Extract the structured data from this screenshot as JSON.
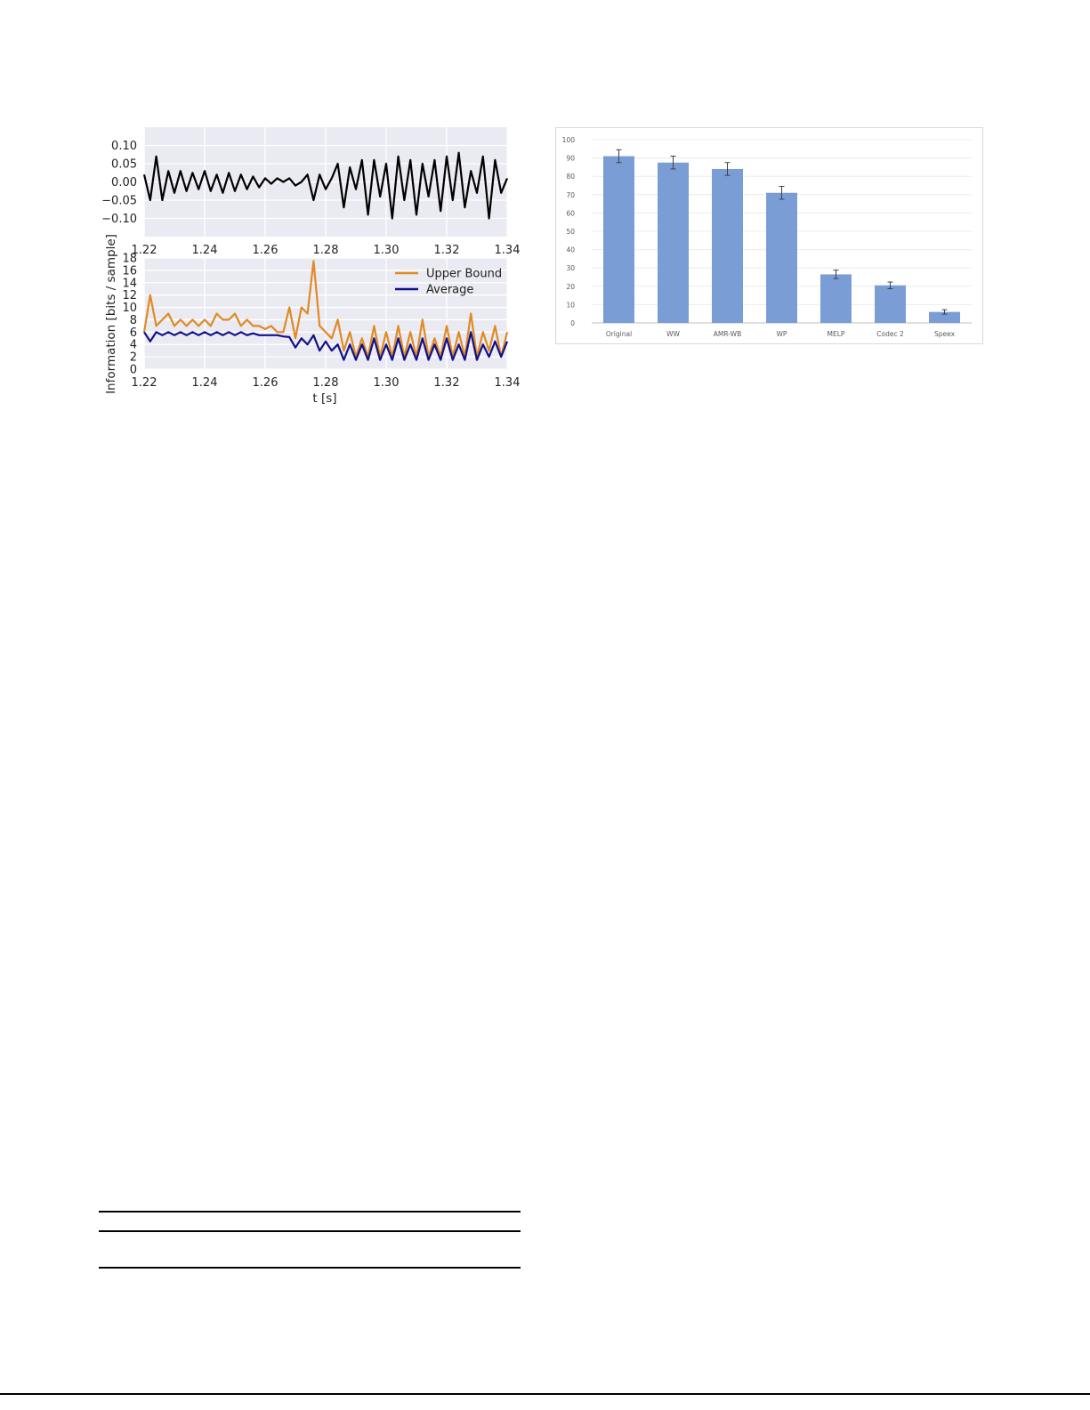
{
  "figure_left": {
    "top_panel": {
      "type": "line",
      "xlim": [
        1.22,
        1.34
      ],
      "ylim": [
        -0.15,
        0.15
      ],
      "x_ticks": [
        "1.22",
        "1.24",
        "1.26",
        "1.28",
        "1.30",
        "1.32",
        "1.34"
      ],
      "y_ticks": [
        "0.10",
        "0.05",
        "0.00",
        "−0.05",
        "−0.10"
      ],
      "y_tick_values": [
        0.1,
        0.05,
        0.0,
        -0.05,
        -0.1
      ],
      "grid": true,
      "background": "#eaeaf2",
      "series_color": "#000000"
    },
    "bottom_panel": {
      "type": "line",
      "xlim": [
        1.22,
        1.34
      ],
      "ylim": [
        0,
        18
      ],
      "x_ticks": [
        "1.22",
        "1.24",
        "1.26",
        "1.28",
        "1.30",
        "1.32",
        "1.34"
      ],
      "y_ticks": [
        "18",
        "16",
        "14",
        "12",
        "10",
        "8",
        "6",
        "4",
        "2",
        "0"
      ],
      "ylabel": "Information [bits / sample]",
      "xlabel": "t [s]",
      "grid": true,
      "background": "#eaeaf2",
      "legend_position": "top-right",
      "legend": [
        {
          "name": "Upper Bound",
          "color": "#e08a22"
        },
        {
          "name": "Average",
          "color": "#11118a"
        }
      ]
    }
  },
  "chart_data": [
    {
      "type": "line",
      "xlim": [
        1.22,
        1.34
      ],
      "ylim": [
        -0.15,
        0.15
      ],
      "x": [
        1.22,
        1.222,
        1.224,
        1.226,
        1.228,
        1.23,
        1.232,
        1.234,
        1.236,
        1.238,
        1.24,
        1.242,
        1.244,
        1.246,
        1.248,
        1.25,
        1.252,
        1.254,
        1.256,
        1.258,
        1.26,
        1.262,
        1.264,
        1.266,
        1.268,
        1.27,
        1.272,
        1.274,
        1.276,
        1.278,
        1.28,
        1.282,
        1.284,
        1.286,
        1.288,
        1.29,
        1.292,
        1.294,
        1.296,
        1.298,
        1.3,
        1.302,
        1.304,
        1.306,
        1.308,
        1.31,
        1.312,
        1.314,
        1.316,
        1.318,
        1.32,
        1.322,
        1.324,
        1.326,
        1.328,
        1.33,
        1.332,
        1.334,
        1.336,
        1.338,
        1.34
      ],
      "series": [
        {
          "values": [
            0.02,
            -0.05,
            0.07,
            -0.05,
            0.03,
            -0.03,
            0.03,
            -0.025,
            0.025,
            -0.02,
            0.03,
            -0.025,
            0.02,
            -0.03,
            0.025,
            -0.025,
            0.02,
            -0.02,
            0.015,
            -0.015,
            0.01,
            -0.005,
            0.01,
            0.0,
            0.01,
            -0.01,
            0.0,
            0.02,
            -0.05,
            0.02,
            -0.02,
            0.01,
            0.05,
            -0.07,
            0.04,
            -0.02,
            0.06,
            -0.09,
            0.06,
            -0.04,
            0.05,
            -0.1,
            0.07,
            -0.05,
            0.06,
            -0.09,
            0.05,
            -0.04,
            0.06,
            -0.08,
            0.07,
            -0.05,
            0.08,
            -0.07,
            0.03,
            -0.03,
            0.07,
            -0.1,
            0.06,
            -0.03,
            0.01
          ]
        }
      ]
    },
    {
      "type": "line",
      "xlim": [
        1.22,
        1.34
      ],
      "ylim": [
        0,
        18
      ],
      "xlabel": "t [s]",
      "ylabel": "Information [bits / sample]",
      "x": [
        1.22,
        1.222,
        1.224,
        1.226,
        1.228,
        1.23,
        1.232,
        1.234,
        1.236,
        1.238,
        1.24,
        1.242,
        1.244,
        1.246,
        1.248,
        1.25,
        1.252,
        1.254,
        1.256,
        1.258,
        1.26,
        1.262,
        1.264,
        1.266,
        1.268,
        1.27,
        1.272,
        1.274,
        1.276,
        1.278,
        1.28,
        1.282,
        1.284,
        1.286,
        1.288,
        1.29,
        1.292,
        1.294,
        1.296,
        1.298,
        1.3,
        1.302,
        1.304,
        1.306,
        1.308,
        1.31,
        1.312,
        1.314,
        1.316,
        1.318,
        1.32,
        1.322,
        1.324,
        1.326,
        1.328,
        1.33,
        1.332,
        1.334,
        1.336,
        1.338,
        1.34
      ],
      "series": [
        {
          "name": "Upper Bound",
          "color": "#e08a22",
          "values": [
            6,
            12,
            7,
            8,
            9,
            7,
            8,
            7,
            8,
            7,
            8,
            7,
            9,
            8,
            8,
            9,
            7,
            8,
            7,
            7,
            6.5,
            7,
            6,
            6,
            10,
            5,
            10,
            9,
            17.5,
            7,
            6,
            5,
            8,
            3,
            6,
            2,
            5,
            2,
            7,
            2,
            6,
            2,
            7,
            2,
            6,
            2,
            8,
            2,
            5,
            2,
            7,
            2,
            6,
            2,
            9,
            2,
            6,
            3,
            7,
            2,
            6
          ]
        },
        {
          "name": "Average",
          "color": "#11118a",
          "values": [
            6,
            4.5,
            6,
            5.5,
            6,
            5.5,
            6,
            5.5,
            6,
            5.5,
            6,
            5.5,
            6,
            5.5,
            6,
            5.5,
            6,
            5.5,
            5.8,
            5.5,
            5.5,
            5.5,
            5.5,
            5.3,
            5.2,
            3.5,
            5,
            4,
            5.5,
            3,
            4.5,
            3,
            4,
            1.5,
            4,
            1.5,
            4,
            1.5,
            5,
            1.5,
            4,
            1.5,
            5,
            1.5,
            4,
            1.5,
            5,
            1.5,
            4,
            1.5,
            5,
            1.5,
            4,
            1.5,
            6,
            1.5,
            4,
            2,
            4.5,
            2,
            4.5
          ]
        }
      ]
    },
    {
      "type": "bar",
      "categories": [
        "Original",
        "WW",
        "AMR-WB",
        "WP",
        "MELP",
        "Codec 2",
        "Speex"
      ],
      "values": [
        91,
        87.5,
        84,
        71,
        26.5,
        20.5,
        6
      ],
      "errors": [
        3.5,
        3.5,
        3.5,
        3.5,
        2.3,
        1.8,
        1.2
      ],
      "ylim": [
        0,
        100
      ],
      "y_ticks": [
        "0",
        "10",
        "20",
        "30",
        "40",
        "50",
        "60",
        "70",
        "80",
        "90",
        "100"
      ],
      "grid": true,
      "bar_color": "#7b9dd6"
    }
  ]
}
